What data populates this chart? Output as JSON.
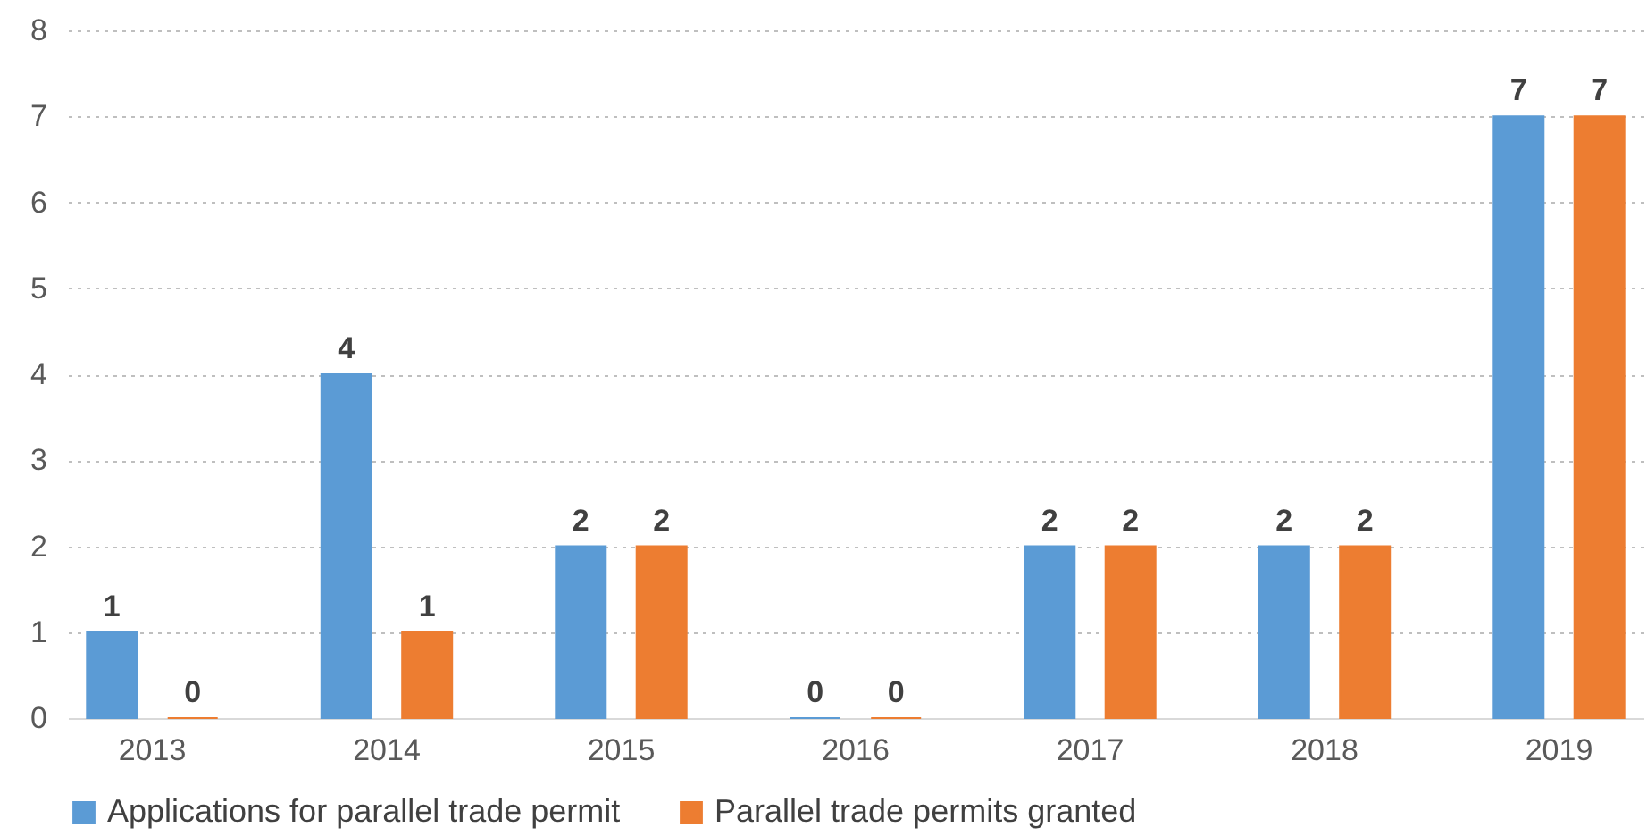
{
  "chart_data": {
    "type": "bar",
    "categories": [
      "2013",
      "2014",
      "2015",
      "2016",
      "2017",
      "2018",
      "2019"
    ],
    "series": [
      {
        "name": "Applications for parallel trade permit",
        "color": "#5b9bd5",
        "values": [
          1,
          4,
          2,
          0,
          2,
          2,
          7
        ]
      },
      {
        "name": "Parallel trade permits granted",
        "color": "#ed7d31",
        "values": [
          0,
          1,
          2,
          0,
          2,
          2,
          7
        ]
      }
    ],
    "ylim": [
      0,
      8
    ],
    "yticks": [
      0,
      1,
      2,
      3,
      4,
      5,
      6,
      7,
      8
    ],
    "grid": "y",
    "legend": "bottom",
    "data_labels": true
  }
}
